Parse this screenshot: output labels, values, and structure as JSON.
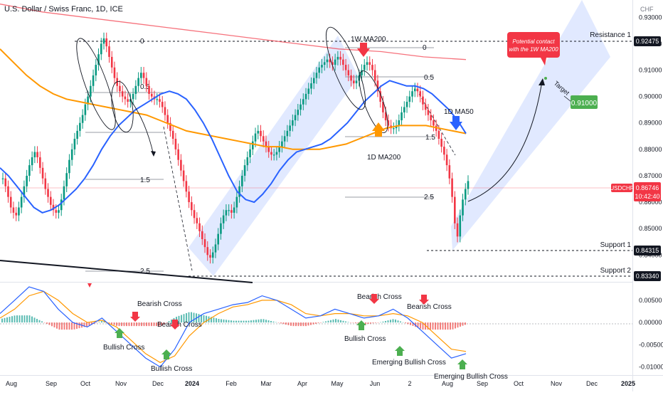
{
  "header": {
    "title": "U.S. Dollar / Swiss Franc, 1D, ICE",
    "currency": "CHF"
  },
  "symbol_badge": {
    "label": "USDCHF",
    "price": "0.86746",
    "countdown": "10:42:40",
    "color": "#f23645"
  },
  "colors": {
    "up": "#089981",
    "down": "#f23645",
    "ma50": "#2962ff",
    "ma200_1d": "#ff9800",
    "ma200_1w": "#f23645",
    "channel": "#c9d7ff",
    "target": "#4caf50"
  },
  "levels": [
    {
      "name": "Resistance 1",
      "price": "0.92475"
    },
    {
      "name": "Support 1",
      "price": "0.84315"
    },
    {
      "name": "Support 2",
      "price": "0.83340"
    }
  ],
  "target": {
    "label": "Target",
    "price": "0.91000"
  },
  "callout": {
    "text1": "Potential contact",
    "text2": "with the 1W MA200"
  },
  "ma_labels": {
    "ma200_1w": "1W MA200",
    "ma50_1d": "1D MA50",
    "ma200_1d": "1D MA200"
  },
  "fib": {
    "a": [
      "0",
      "0.5",
      "1.5",
      "2.5"
    ],
    "b": [
      "0",
      "0.5",
      "1.5",
      "2.5"
    ]
  },
  "osc_labels": [
    {
      "text": "Bearish Cross"
    },
    {
      "text": "Bullish Cross"
    },
    {
      "text": "Bearish Cross"
    },
    {
      "text": "Bullish Cross"
    },
    {
      "text": "Bearish Cross"
    },
    {
      "text": "Bullish Cross"
    },
    {
      "text": "Bearish Cross"
    },
    {
      "text": "Emerging Bullish Cross"
    },
    {
      "text": "Emerging Bullish Cross"
    }
  ],
  "chart_data": {
    "type": "line",
    "title": "U.S. Dollar / Swiss Franc, 1D, ICE",
    "x_tick_labels": [
      "Aug",
      "Sep",
      "Oct",
      "Nov",
      "Dec",
      "2024",
      "Feb",
      "Mar",
      "Apr",
      "May",
      "Jun",
      "2",
      "Aug",
      "Sep",
      "Oct",
      "Nov",
      "Dec",
      "2025"
    ],
    "y_tick_labels": [
      "0.93000",
      "0.92000",
      "0.91000",
      "0.90000",
      "0.89000",
      "0.88000",
      "0.87000",
      "0.86000",
      "0.85000",
      "0.84000"
    ],
    "ylim": [
      0.832,
      0.936
    ],
    "osc_tick_labels": [
      "0.00500",
      "0.00000",
      "-0.00500",
      "-0.01000"
    ],
    "osc_ylim": [
      -0.0115,
      0.0085
    ],
    "series": [
      {
        "values": [
          0.869,
          0.866,
          0.862,
          0.858,
          0.856,
          0.855,
          0.858,
          0.862,
          0.866,
          0.87,
          0.874,
          0.877,
          0.879,
          0.877,
          0.873,
          0.869,
          0.865,
          0.862,
          0.859,
          0.857,
          0.856,
          0.857,
          0.861,
          0.866,
          0.871,
          0.876,
          0.88,
          0.884,
          0.887,
          0.89,
          0.893,
          0.897,
          0.9,
          0.904,
          0.908,
          0.912,
          0.916,
          0.92,
          0.922,
          0.919,
          0.915,
          0.911,
          0.907,
          0.904,
          0.902,
          0.9,
          0.899,
          0.898,
          0.899,
          0.901,
          0.904,
          0.907,
          0.909,
          0.907,
          0.904,
          0.901,
          0.9,
          0.899,
          0.899,
          0.898,
          0.896,
          0.893,
          0.89,
          0.887,
          0.884,
          0.88,
          0.876,
          0.872,
          0.868,
          0.864,
          0.86,
          0.857,
          0.854,
          0.852,
          0.849,
          0.846,
          0.843,
          0.84,
          0.839,
          0.841,
          0.844,
          0.848,
          0.852,
          0.855,
          0.857,
          0.857,
          0.856,
          0.858,
          0.862,
          0.866,
          0.87,
          0.874,
          0.877,
          0.88,
          0.883,
          0.886,
          0.887,
          0.885,
          0.883,
          0.881,
          0.879,
          0.878,
          0.878,
          0.879,
          0.881,
          0.883,
          0.885,
          0.887,
          0.889,
          0.891,
          0.893,
          0.895,
          0.897,
          0.899,
          0.901,
          0.903,
          0.905,
          0.907,
          0.909,
          0.911,
          0.912,
          0.913,
          0.914,
          0.913,
          0.912,
          0.914,
          0.915,
          0.914,
          0.912,
          0.91,
          0.908,
          0.906,
          0.905,
          0.906,
          0.908,
          0.91,
          0.912,
          0.913,
          0.912,
          0.91,
          0.906,
          0.902,
          0.898,
          0.894,
          0.891,
          0.889,
          0.888,
          0.888,
          0.889,
          0.891,
          0.894,
          0.896,
          0.898,
          0.9,
          0.902,
          0.903,
          0.902,
          0.9,
          0.897,
          0.895,
          0.893,
          0.891,
          0.889,
          0.887,
          0.884,
          0.881,
          0.878,
          0.874,
          0.869,
          0.862,
          0.852,
          0.847,
          0.855,
          0.861,
          0.865,
          0.868
        ]
      },
      {
        "name": "1D MA50",
        "values": [
          0.873,
          0.87,
          0.866,
          0.862,
          0.858,
          0.856,
          0.857,
          0.859,
          0.862,
          0.865,
          0.869,
          0.874,
          0.88,
          0.885,
          0.889,
          0.892,
          0.895,
          0.897,
          0.899,
          0.901,
          0.902,
          0.901,
          0.899,
          0.895,
          0.89,
          0.884,
          0.877,
          0.87,
          0.864,
          0.861,
          0.86,
          0.863,
          0.867,
          0.872,
          0.876,
          0.879,
          0.88,
          0.881,
          0.882,
          0.884,
          0.887,
          0.89,
          0.894,
          0.898,
          0.901,
          0.904,
          0.906,
          0.905,
          0.904,
          0.904,
          0.903,
          0.901,
          0.898,
          0.895,
          0.891,
          0.886
        ]
      },
      {
        "name": "1D MA200",
        "values": [
          0.918,
          0.913,
          0.908,
          0.904,
          0.901,
          0.899,
          0.898,
          0.897,
          0.896,
          0.895,
          0.894,
          0.893,
          0.891,
          0.889,
          0.887,
          0.886,
          0.885,
          0.884,
          0.883,
          0.882,
          0.881,
          0.881,
          0.88,
          0.88,
          0.88,
          0.881,
          0.882,
          0.884,
          0.886,
          0.888,
          0.889,
          0.889,
          0.889,
          0.888,
          0.887,
          0.886
        ]
      },
      {
        "name": "1W MA200",
        "values": [
          0.935,
          0.932,
          0.93,
          0.928,
          0.926,
          0.924,
          0.922,
          0.92,
          0.918,
          0.917,
          0.915,
          0.914
        ]
      }
    ],
    "oscillator": {
      "macd": [
        0.002,
        0.005,
        0.008,
        0.007,
        0.003,
        0.0,
        -0.001,
        0.001,
        -0.002,
        -0.005,
        -0.008,
        -0.01,
        -0.006,
        0.0,
        0.002,
        0.003,
        0.004,
        0.0045,
        0.006,
        0.005,
        0.003,
        0.001,
        0.0015,
        0.003,
        0.002,
        0.001,
        0.0015,
        0.003,
        0.001,
        -0.002,
        -0.005,
        -0.008,
        -0.007
      ],
      "signal": [
        0.001,
        0.003,
        0.006,
        0.007,
        0.005,
        0.002,
        0.0,
        0.0005,
        -0.001,
        -0.004,
        -0.007,
        -0.009,
        -0.0075,
        -0.003,
        0.0,
        0.002,
        0.0035,
        0.004,
        0.005,
        0.005,
        0.004,
        0.002,
        0.0015,
        0.002,
        0.002,
        0.0015,
        0.0015,
        0.002,
        0.0015,
        0.0,
        -0.003,
        -0.006,
        -0.0065
      ]
    }
  }
}
